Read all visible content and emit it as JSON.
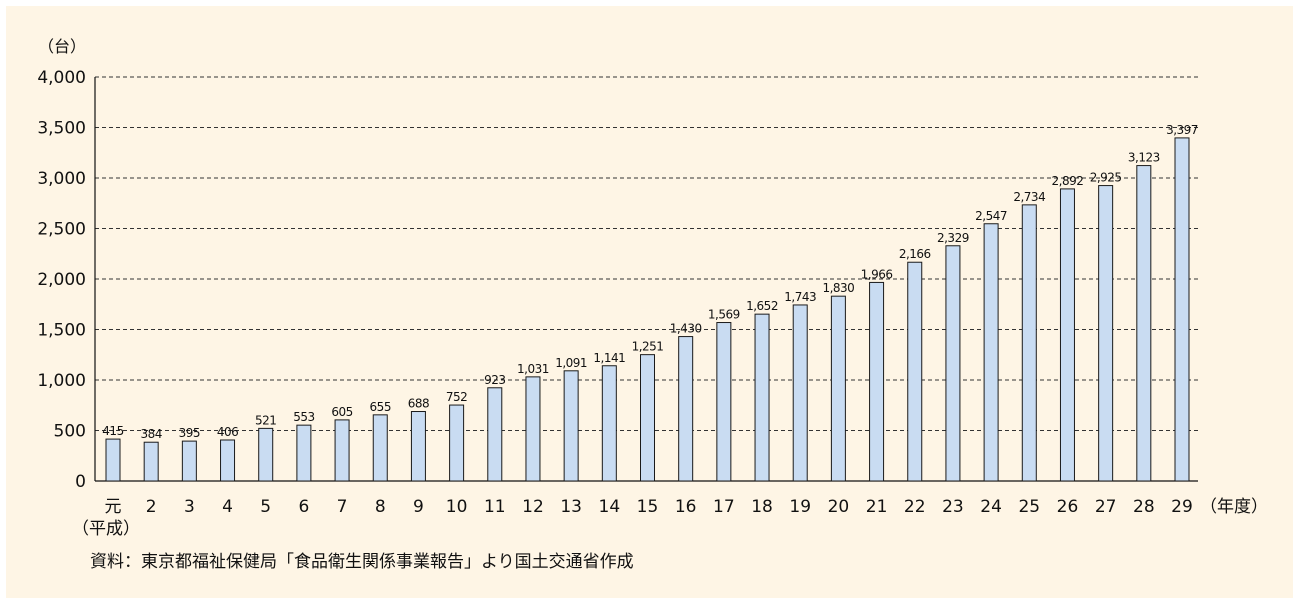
{
  "chart_data": {
    "type": "bar",
    "y_unit": "（台）",
    "x_unit": "（年度）",
    "era_label": "（平成）",
    "categories": [
      "元",
      "2",
      "3",
      "4",
      "5",
      "6",
      "7",
      "8",
      "9",
      "10",
      "11",
      "12",
      "13",
      "14",
      "15",
      "16",
      "17",
      "18",
      "19",
      "20",
      "21",
      "22",
      "23",
      "24",
      "25",
      "26",
      "27",
      "28",
      "29"
    ],
    "values": [
      415,
      384,
      395,
      406,
      521,
      553,
      605,
      655,
      688,
      752,
      923,
      1031,
      1091,
      1141,
      1251,
      1430,
      1569,
      1652,
      1743,
      1830,
      1966,
      2166,
      2329,
      2547,
      2734,
      2892,
      2925,
      3123,
      3397
    ],
    "value_labels": [
      "415",
      "384",
      "395",
      "406",
      "521",
      "553",
      "605",
      "655",
      "688",
      "752",
      "923",
      "1,031",
      "1,091",
      "1,141",
      "1,251",
      "1,430",
      "1,569",
      "1,652",
      "1,743",
      "1,830",
      "1,966",
      "2,166",
      "2,329",
      "2,547",
      "2,734",
      "2,892",
      "2,925",
      "3,123",
      "3,397"
    ],
    "yticks": [
      0,
      500,
      1000,
      1500,
      2000,
      2500,
      3000,
      3500,
      4000
    ],
    "ytick_labels": [
      "0",
      "500",
      "1,000",
      "1,500",
      "2,000",
      "2,500",
      "3,000",
      "3,500",
      "4,000"
    ],
    "ylim": [
      0,
      4000
    ],
    "grid": "dashed-horizontal",
    "bar_color": "#c9dcf2",
    "bar_edge_color": "#1a1a1a",
    "source": "資料：東京都福祉保健局「食品衛生関係事業報告」より国土交通省作成"
  }
}
